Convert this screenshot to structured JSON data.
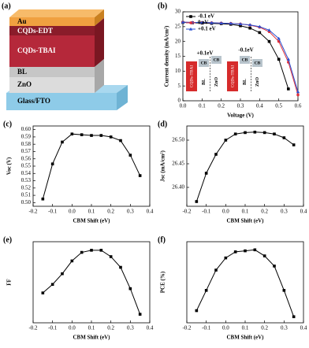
{
  "device_stack": {
    "panel": "(a)",
    "layers": [
      "Au",
      "CQDs-EDT",
      "CQDs-TBAI",
      "BL",
      "ZnO",
      "Glass/FTO"
    ]
  },
  "chart_data": [
    {
      "type": "line",
      "panel": "(b)",
      "xlabel": "Voltage (V)",
      "ylabel": "Current density (mA/cm²)",
      "x": [
        0,
        0.05,
        0.1,
        0.15,
        0.2,
        0.25,
        0.3,
        0.35,
        0.4,
        0.45,
        0.5,
        0.55,
        0.6
      ],
      "series": [
        {
          "name": "-0.1 eV",
          "color": "#000000",
          "marker": "square",
          "values": [
            26.4,
            26.3,
            26.2,
            26.1,
            26.0,
            25.8,
            25.3,
            24.5,
            23,
            20,
            14,
            4,
            null
          ]
        },
        {
          "name": "0 eV",
          "color": "#e0303a",
          "marker": "circle",
          "values": [
            26.5,
            26.4,
            26.4,
            26.3,
            26.2,
            26.1,
            25.9,
            25.5,
            24.8,
            23.3,
            20,
            13,
            2
          ]
        },
        {
          "name": "+0.1 eV",
          "color": "#2a4fd0",
          "marker": "triangle",
          "values": [
            26.5,
            26.4,
            26.4,
            26.3,
            26.2,
            26.1,
            25.9,
            25.6,
            25,
            23.8,
            21,
            14,
            3
          ]
        }
      ],
      "xlim": [
        0,
        0.6
      ],
      "xticks": [
        {
          "value": 0,
          "label": "0.0"
        },
        0.1,
        0.2,
        0.3,
        0.4,
        0.5,
        0.6
      ],
      "ylim": [
        0,
        30
      ],
      "yticks": [
        0,
        5,
        10,
        15,
        20,
        25,
        30
      ],
      "insets": [
        {
          "shift": "+0.1eV",
          "labels": [
            "CQDs-TBAI",
            "CB",
            "BL",
            "CB",
            "ZnO"
          ]
        },
        {
          "shift": "-0.1eV",
          "labels": [
            "CQDs-TBAI",
            "CB",
            "BL",
            "CB",
            "ZnO"
          ]
        }
      ]
    },
    {
      "type": "line",
      "panel": "(c)",
      "xlabel": "CBM Shift (eV)",
      "ylabel": "Voc (V)",
      "x": [
        -0.15,
        -0.1,
        -0.05,
        0,
        0.05,
        0.1,
        0.15,
        0.2,
        0.25,
        0.3,
        0.35
      ],
      "series": [
        {
          "color": "#000000",
          "marker": "square",
          "values": [
            0.505,
            0.553,
            0.583,
            0.594,
            0.593,
            0.592,
            0.592,
            0.59,
            0.585,
            0.565,
            0.537
          ]
        }
      ],
      "xlim": [
        -0.2,
        0.4
      ],
      "xticks": [
        -0.2,
        -0.1,
        {
          "value": 0,
          "label": "0.0"
        },
        0.1,
        0.2,
        0.3,
        0.4
      ],
      "ylim": [
        0.495,
        0.605
      ],
      "yticks": [
        {
          "value": 0.5,
          "label": "0.50"
        },
        {
          "value": 0.51,
          "label": "0.51"
        },
        {
          "value": 0.52,
          "label": "0.52"
        },
        {
          "value": 0.53,
          "label": "0.53"
        },
        {
          "value": 0.54,
          "label": "0.54"
        },
        {
          "value": 0.55,
          "label": "0.55"
        },
        {
          "value": 0.56,
          "label": "0.56"
        },
        {
          "value": 0.57,
          "label": "0.57"
        },
        {
          "value": 0.58,
          "label": "0.58"
        },
        {
          "value": 0.59,
          "label": "0.59"
        },
        {
          "value": 0.6,
          "label": "0.60"
        }
      ]
    },
    {
      "type": "line",
      "panel": "(d)",
      "xlabel": "CBM Shift (eV)",
      "ylabel": "Jsc (mA/cm²)",
      "x": [
        -0.15,
        -0.1,
        -0.05,
        0,
        0.05,
        0.1,
        0.15,
        0.2,
        0.25,
        0.3,
        0.35
      ],
      "series": [
        {
          "color": "#000000",
          "marker": "square",
          "values": [
            26.37,
            26.43,
            26.47,
            26.5,
            26.513,
            26.516,
            26.517,
            26.516,
            26.513,
            26.505,
            26.49
          ]
        }
      ],
      "xlim": [
        -0.2,
        0.4
      ],
      "xticks": [
        -0.2,
        -0.1,
        {
          "value": 0,
          "label": "0.0"
        },
        0.1,
        0.2,
        0.3,
        0.4
      ],
      "ylim": [
        26.36,
        26.53
      ],
      "yticks": [
        {
          "value": 26.4,
          "label": "26.40"
        },
        26.45,
        {
          "value": 26.5,
          "label": "26.50"
        }
      ]
    },
    {
      "type": "line",
      "panel": "(e)",
      "xlabel": "CBM Shift (eV)",
      "ylabel": "FF",
      "x": [
        -0.15,
        -0.1,
        -0.05,
        0,
        0.05,
        0.1,
        0.15,
        0.2,
        0.25,
        0.3,
        0.35
      ],
      "series": [
        {
          "color": "#000000",
          "marker": "square",
          "values": [
            57,
            59,
            61.5,
            64.5,
            66.5,
            67,
            67,
            65.5,
            63,
            58,
            52
          ]
        }
      ],
      "xlim": [
        -0.2,
        0.4
      ],
      "xticks": [
        -0.2,
        -0.1,
        {
          "value": 0,
          "label": "0.0"
        },
        0.1,
        0.2,
        0.3,
        0.4
      ],
      "ylim": [
        50,
        69
      ]
    },
    {
      "type": "line",
      "panel": "(f)",
      "xlabel": "CBM Shift (eV)",
      "ylabel": "PCE (%)",
      "x": [
        -0.15,
        -0.1,
        -0.05,
        0,
        0.05,
        0.1,
        0.15,
        0.2,
        0.25,
        0.3,
        0.35
      ],
      "series": [
        {
          "color": "#000000",
          "marker": "square",
          "values": [
            7.6,
            8.6,
            9.6,
            10.2,
            10.5,
            10.55,
            10.6,
            10.3,
            9.8,
            8.6,
            7.3
          ]
        }
      ],
      "xlim": [
        -0.2,
        0.4
      ],
      "xticks": [
        -0.2,
        -0.1,
        {
          "value": 0,
          "label": "0.0"
        },
        0.1,
        0.2,
        0.3,
        0.4
      ],
      "ylim": [
        7,
        11
      ]
    }
  ]
}
